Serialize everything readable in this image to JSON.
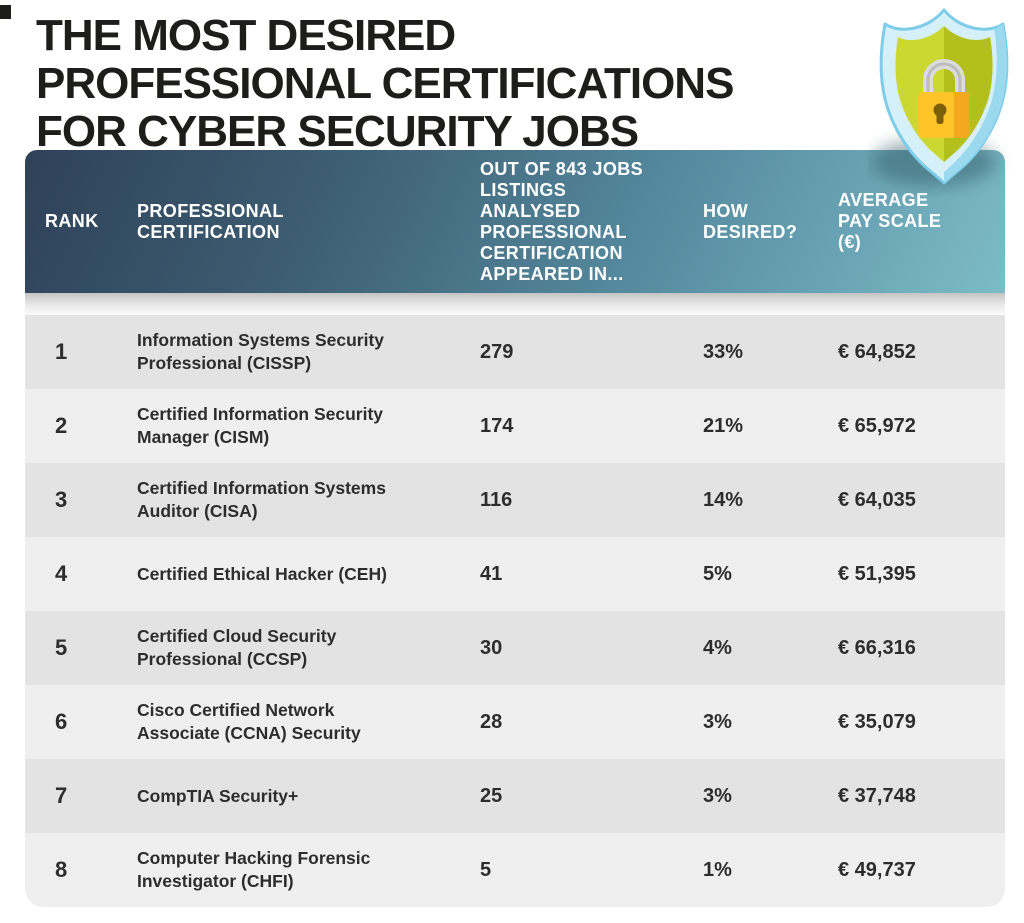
{
  "title": {
    "lines": [
      "THE MOST DESIRED",
      "PROFESSIONAL CERTIFICATIONS",
      "FOR CYBER SECURITY JOBS"
    ]
  },
  "header": {
    "rank": "RANK",
    "certification": "PROFESSIONAL\nCERTIFICATION",
    "appeared": "OUT OF 843 JOBS\nLISTINGS\nANALYSED\nPROFESSIONAL\nCERTIFICATION\nAPPEARED IN...",
    "desired": "HOW\nDESIRED?",
    "pay": "AVERAGE\nPAY SCALE\n(€)"
  },
  "rows": [
    {
      "rank": "1",
      "certification": "Information Systems Security\nProfessional (CISSP)",
      "appeared": "279",
      "desired": "33%",
      "pay": "€ 64,852"
    },
    {
      "rank": "2",
      "certification": "Certified Information Security\nManager (CISM)",
      "appeared": "174",
      "desired": "21%",
      "pay": "€ 65,972"
    },
    {
      "rank": "3",
      "certification": "Certified Information Systems\nAuditor (CISA)",
      "appeared": "116",
      "desired": "14%",
      "pay": "€ 64,035"
    },
    {
      "rank": "4",
      "certification": "Certified Ethical Hacker (CEH)",
      "appeared": "41",
      "desired": "5%",
      "pay": "€ 51,395"
    },
    {
      "rank": "5",
      "certification": "Certified Cloud Security\nProfessional (CCSP)",
      "appeared": "30",
      "desired": "4%",
      "pay": "€ 66,316"
    },
    {
      "rank": "6",
      "certification": "Cisco Certified Network\nAssociate (CCNA) Security",
      "appeared": "28",
      "desired": "3%",
      "pay": "€ 35,079"
    },
    {
      "rank": "7",
      "certification": "CompTIA Security+",
      "appeared": "25",
      "desired": "3%",
      "pay": "€ 37,748"
    },
    {
      "rank": "8",
      "certification": "Computer Hacking Forensic\nInvestigator (CHFI)",
      "appeared": "5",
      "desired": "1%",
      "pay": "€ 49,737"
    }
  ],
  "icon": {
    "name": "shield-lock",
    "shield_outer": "#d6f0fa",
    "shield_rim": "#7ecde8",
    "shield_depth": "#9bd9ee",
    "shield_inner_light": "#cbd832",
    "shield_inner_dark": "#b3bf1a",
    "lock_body": "#ffc42a",
    "lock_side": "#f3a81f",
    "lock_keyhole": "#7c6008",
    "shackle": "#dcdcdc"
  },
  "colors": {
    "header_gradient_start": "#2e4157",
    "header_gradient_end": "#7dbbc8",
    "row_dark": "#e3e3e3",
    "row_light": "#efefef",
    "divider_top": "#c4c4c4",
    "text_dark": "#2d2d2d",
    "header_text": "#ffffff",
    "title_text": "#1d1d1b"
  },
  "chart_data": {
    "type": "table",
    "title": "THE MOST DESIRED PROFESSIONAL CERTIFICATIONS FOR CYBER SECURITY JOBS",
    "columns": [
      "RANK",
      "PROFESSIONAL CERTIFICATION",
      "OUT OF 843 JOBS LISTINGS ANALYSED PROFESSIONAL CERTIFICATION APPEARED IN...",
      "HOW DESIRED?",
      "AVERAGE PAY SCALE (€)"
    ],
    "rows": [
      [
        1,
        "Information Systems Security Professional (CISSP)",
        279,
        "33%",
        "€ 64,852"
      ],
      [
        2,
        "Certified Information Security Manager (CISM)",
        174,
        "21%",
        "€ 65,972"
      ],
      [
        3,
        "Certified Information Systems Auditor (CISA)",
        116,
        "14%",
        "€ 64,035"
      ],
      [
        4,
        "Certified Ethical Hacker (CEH)",
        41,
        "5%",
        "€ 51,395"
      ],
      [
        5,
        "Certified Cloud Security Professional (CCSP)",
        30,
        "4%",
        "€ 66,316"
      ],
      [
        6,
        "Cisco Certified Network Associate (CCNA) Security",
        28,
        "3%",
        "€ 35,079"
      ],
      [
        7,
        "CompTIA Security+",
        25,
        "3%",
        "€ 37,748"
      ],
      [
        8,
        "Computer Hacking Forensic Investigator (CHFI)",
        5,
        "1%",
        "€ 49,737"
      ]
    ]
  }
}
